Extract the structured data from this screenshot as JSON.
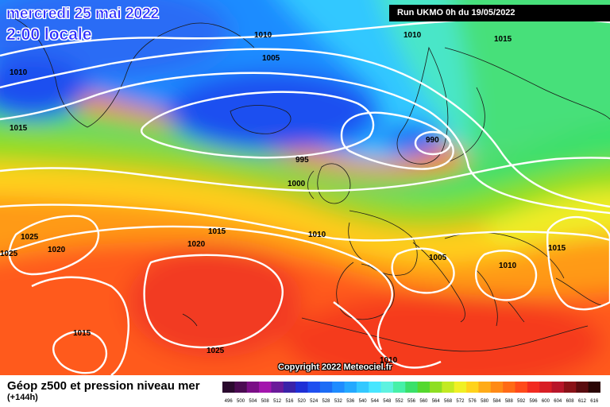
{
  "header": {
    "date": "mercredi 25 mai 2022",
    "time": "2:00 locale",
    "run": "Run UKMO 0h du 19/05/2022"
  },
  "copyright": "Copyright 2022 Meteociel.fr",
  "footer": {
    "title": "Géop z500 et pression niveau mer",
    "subtitle": "(+144h)"
  },
  "isobar_labels": [
    "1010",
    "1010",
    "1015",
    "1005",
    "1010",
    "1015",
    "1015",
    "995",
    "990",
    "1000",
    "1025",
    "1025",
    "1020",
    "1015",
    "1020",
    "1010",
    "1005",
    "1010",
    "1015",
    "1015",
    "1025",
    "1010"
  ],
  "legend": {
    "values": [
      "496",
      "500",
      "504",
      "508",
      "512",
      "516",
      "520",
      "524",
      "528",
      "532",
      "536",
      "540",
      "544",
      "548",
      "552",
      "556",
      "560",
      "564",
      "568",
      "572",
      "576",
      "580",
      "584",
      "588",
      "592",
      "596",
      "600",
      "604",
      "608",
      "612",
      "616"
    ],
    "colors": [
      "#2a0a2e",
      "#4b0b52",
      "#7a0e86",
      "#a315ad",
      "#6a1a9a",
      "#3a22a8",
      "#1f2fd6",
      "#1f4ff0",
      "#1c6cf5",
      "#1e8cff",
      "#24a9ff",
      "#33c8ff",
      "#48e6ff",
      "#5ef2e0",
      "#46f0a8",
      "#3ae06a",
      "#54d82e",
      "#8ede22",
      "#c2ea22",
      "#f0f025",
      "#ffd31c",
      "#ffab18",
      "#ff8a16",
      "#ff6a16",
      "#ff4a1a",
      "#f22a20",
      "#d81e25",
      "#b8162a",
      "#8a1218",
      "#5a0c10",
      "#2a0606"
    ]
  }
}
